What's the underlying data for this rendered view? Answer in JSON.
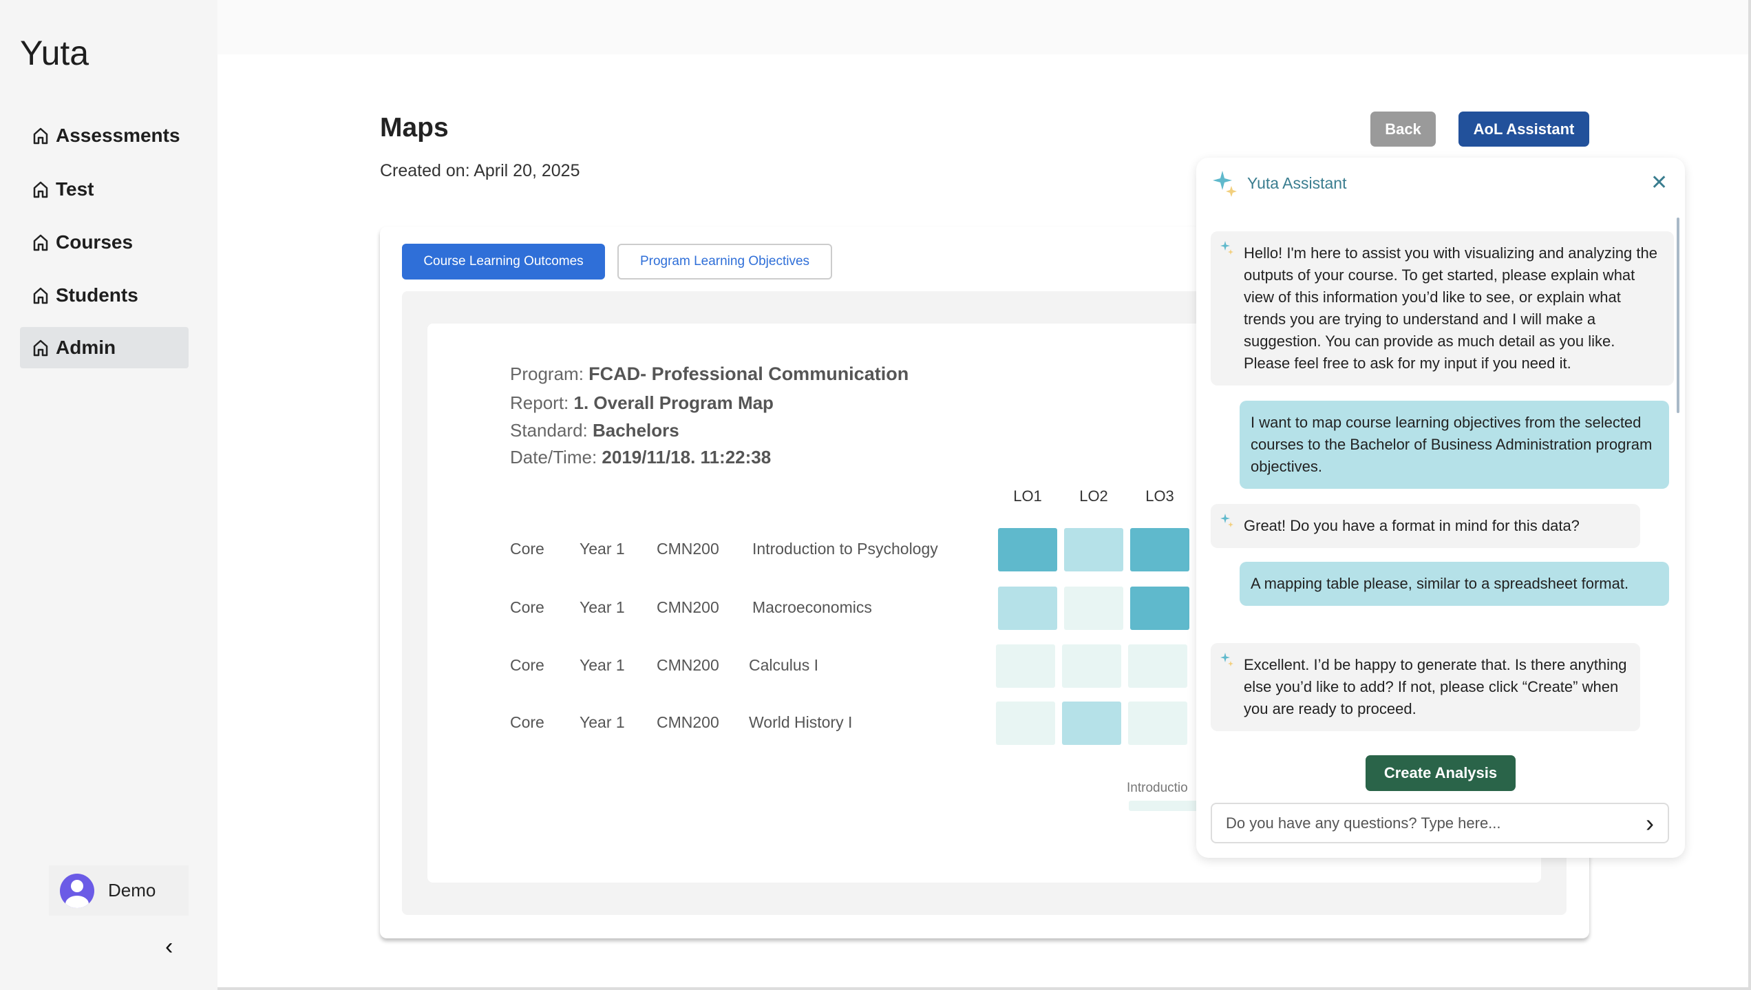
{
  "sidebar": {
    "logo": "Yuta",
    "items": [
      {
        "label": "Assessments"
      },
      {
        "label": "Test"
      },
      {
        "label": "Courses"
      },
      {
        "label": "Students"
      },
      {
        "label": "Admin",
        "active": true
      }
    ],
    "user": "Demo"
  },
  "header": {
    "title": "Maps",
    "created": "Created on: April 20, 2025",
    "back": "Back",
    "aol": "AoL Assistant"
  },
  "tabs": [
    {
      "label": "Course Learning Outcomes",
      "active": true
    },
    {
      "label": "Program Learning Objectives"
    }
  ],
  "report": {
    "program_label": "Program:",
    "program": "FCAD- Professional Communication",
    "report_label": "Report:",
    "report": "1. Overall Program Map",
    "standard_label": "Standard:",
    "standard": "Bachelors",
    "datetime_label": "Date/Time:",
    "datetime": "2019/11/18. 11:22:38"
  },
  "map": {
    "columns": [
      "LO1",
      "LO2",
      "LO3"
    ],
    "rows": [
      {
        "type": "Core",
        "year": "Year 1",
        "code": "CMN200",
        "course": "Introduction to Psychology",
        "levels": [
          2,
          1,
          2
        ]
      },
      {
        "type": "Core",
        "year": "Year 1",
        "code": "CMN200",
        "course": "Macroeconomics",
        "levels": [
          1,
          0,
          2
        ]
      },
      {
        "type": "Core",
        "year": "Year 1",
        "code": "CMN200",
        "course": "Calculus I",
        "levels": [
          0,
          0,
          0
        ]
      },
      {
        "type": "Core",
        "year": "Year 1",
        "code": "CMN200",
        "course": "World History I",
        "levels": [
          0,
          1,
          0
        ]
      }
    ],
    "legend_label": "Introductio",
    "level_colors": [
      "#e8f5f3",
      "#b5e1e8",
      "#5fb9cc"
    ]
  },
  "assistant": {
    "title": "Yuta Assistant",
    "messages": [
      {
        "from": "bot",
        "text": "Hello! I'm here to assist you with visualizing and analyzing the outputs of your course. To get started, please explain what view of this information you’d like to see, or explain what trends you are trying to understand and I will make a suggestion. You can provide as much detail as you like. Please feel free to ask for my input if you need it."
      },
      {
        "from": "user",
        "text": "I want to map course learning objectives from the selected courses to the Bachelor of Business Administration program objectives."
      },
      {
        "from": "bot",
        "text": "Great! Do you have a format in mind for this data?"
      },
      {
        "from": "user",
        "text": "A mapping table please, similar to a spreadsheet format."
      },
      {
        "from": "bot",
        "text": "Excellent. I’d be happy to generate that. Is there anything else you’d like to add? If not, please click “Create” when you are ready to proceed."
      }
    ],
    "create_button": "Create Analysis",
    "input_placeholder": "Do you have any questions? Type here..."
  }
}
